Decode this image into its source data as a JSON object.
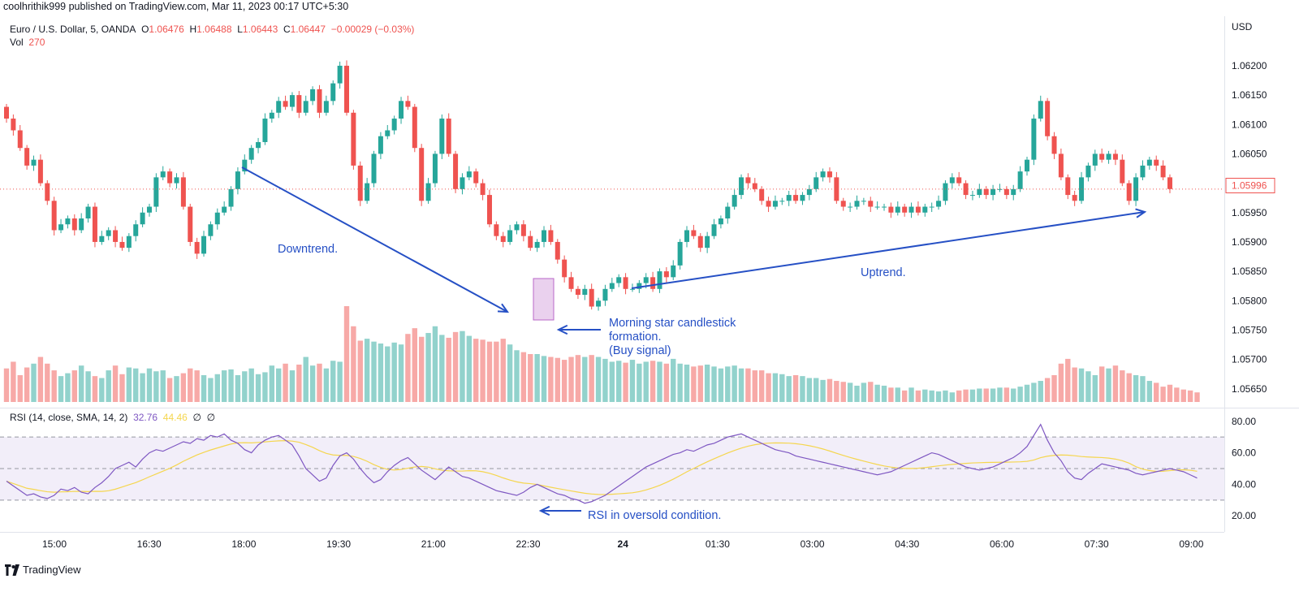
{
  "header": {
    "publisher_line": "coolhrithik999 published on TradingView.com, Mar 11, 2023 00:17 UTC+5:30"
  },
  "legend": {
    "symbol": "Euro / U.S. Dollar, 5, OANDA",
    "open_label": "O",
    "open": "1.06476",
    "high_label": "H",
    "high": "1.06488",
    "low_label": "L",
    "low": "1.06443",
    "close_label": "C",
    "close": "1.06447",
    "change": "−0.00029 (−0.03%)",
    "vol_label": "Vol",
    "vol": "270"
  },
  "price_axis": {
    "currency": "USD",
    "ticks": [
      "1.06200",
      "1.06150",
      "1.06100",
      "1.06050",
      "1.05950",
      "1.05900",
      "1.05850",
      "1.05800",
      "1.05750",
      "1.05700",
      "1.05650"
    ],
    "last_price": "1.05996"
  },
  "rsi_legend": {
    "label": "RSI (14, close, SMA, 14, 2)",
    "rsi": "32.76",
    "sma": "44.46",
    "extra1": "∅",
    "extra2": "∅"
  },
  "rsi_axis": {
    "ticks": [
      "80.00",
      "60.00",
      "40.00",
      "20.00"
    ]
  },
  "time_axis": {
    "ticks": [
      "15:00",
      "16:30",
      "18:00",
      "19:30",
      "21:00",
      "22:30",
      "24",
      "01:30",
      "03:00",
      "04:30",
      "06:00",
      "07:30",
      "09:00"
    ]
  },
  "annotations": {
    "downtrend": "Downtrend.",
    "uptrend": "Uptrend.",
    "morning_star_1": "Morning star candlestick",
    "morning_star_2": "formation.",
    "morning_star_3": "(Buy signal)",
    "rsi_oversold": "RSI in oversold condition."
  },
  "footer": {
    "brand": "TradingView"
  },
  "colors": {
    "up": "#26a69a",
    "down": "#ef5350",
    "rsi": "#7e57c2",
    "rsi_sma": "#f5d64e",
    "annotation": "#2650c5",
    "rsi_band": "#ede7f6"
  },
  "chart_data": {
    "type": "candlestick",
    "symbol": "EURUSD",
    "timeframe": "5",
    "price_ylim": [
      1.0564,
      1.0624
    ],
    "closes": [
      1.0611,
      1.0609,
      1.0606,
      1.0603,
      1.0604,
      1.06,
      1.0597,
      1.0592,
      1.0593,
      1.0594,
      1.0592,
      1.0594,
      1.0596,
      1.059,
      1.0591,
      1.0592,
      1.059,
      1.0589,
      1.0591,
      1.0593,
      1.0595,
      1.0596,
      1.0601,
      1.0602,
      1.06,
      1.0601,
      1.0596,
      1.059,
      1.0588,
      1.0591,
      1.0593,
      1.0595,
      1.0596,
      1.0599,
      1.0602,
      1.0604,
      1.0606,
      1.0607,
      1.0611,
      1.0612,
      1.0614,
      1.0613,
      1.0615,
      1.0612,
      1.0614,
      1.0616,
      1.0612,
      1.0614,
      1.0617,
      1.062,
      1.0612,
      1.0603,
      1.0597,
      1.06,
      1.0605,
      1.0608,
      1.0609,
      1.0611,
      1.0614,
      1.0613,
      1.0606,
      1.0597,
      1.06,
      1.0605,
      1.0611,
      1.0605,
      1.0599,
      1.0601,
      1.0602,
      1.06,
      1.0598,
      1.0593,
      1.0591,
      1.059,
      1.0592,
      1.0593,
      1.0591,
      1.0589,
      1.059,
      1.0592,
      1.059,
      1.0587,
      1.0584,
      1.0582,
      1.0581,
      1.0582,
      1.0579,
      1.058,
      1.0582,
      1.0583,
      1.0584,
      1.0582,
      1.0582,
      1.0583,
      1.0584,
      1.0582,
      1.0585,
      1.0584,
      1.0586,
      1.059,
      1.0592,
      1.0591,
      1.0589,
      1.0591,
      1.0593,
      1.0594,
      1.0596,
      1.0598,
      1.0601,
      1.06,
      1.0599,
      1.0597,
      1.0596,
      1.0597,
      1.0597,
      1.0598,
      1.0597,
      1.0598,
      1.0599,
      1.0601,
      1.0602,
      1.0601,
      1.0597,
      1.0596,
      1.0596,
      1.0597,
      1.0597,
      1.0596,
      1.0596,
      1.0596,
      1.0595,
      1.0596,
      1.0595,
      1.0596,
      1.0595,
      1.0596,
      1.0596,
      1.0597,
      1.06,
      1.0601,
      1.06,
      1.0598,
      1.0598,
      1.0599,
      1.0598,
      1.0599,
      1.0599,
      1.0598,
      1.0599,
      1.0602,
      1.0604,
      1.0611,
      1.0614,
      1.0608,
      1.0605,
      1.0601,
      1.0598,
      1.0597,
      1.0601,
      1.0603,
      1.0605,
      1.0604,
      1.0605,
      1.0604,
      1.06,
      1.0597,
      1.0601,
      1.0603,
      1.0604,
      1.0603,
      1.0601,
      1.0599
    ],
    "volume_relative": [
      0.35,
      0.42,
      0.28,
      0.36,
      0.4,
      0.47,
      0.4,
      0.33,
      0.27,
      0.3,
      0.33,
      0.38,
      0.32,
      0.27,
      0.25,
      0.33,
      0.38,
      0.29,
      0.36,
      0.35,
      0.3,
      0.35,
      0.32,
      0.33,
      0.25,
      0.27,
      0.3,
      0.35,
      0.33,
      0.28,
      0.25,
      0.29,
      0.33,
      0.34,
      0.28,
      0.32,
      0.35,
      0.29,
      0.31,
      0.38,
      0.35,
      0.4,
      0.33,
      0.39,
      0.47,
      0.38,
      0.4,
      0.35,
      0.43,
      0.42,
      1.0,
      0.79,
      0.64,
      0.66,
      0.63,
      0.61,
      0.58,
      0.62,
      0.6,
      0.71,
      0.77,
      0.68,
      0.72,
      0.79,
      0.7,
      0.67,
      0.73,
      0.74,
      0.69,
      0.66,
      0.65,
      0.63,
      0.63,
      0.66,
      0.6,
      0.54,
      0.52,
      0.5,
      0.5,
      0.48,
      0.47,
      0.46,
      0.44,
      0.47,
      0.49,
      0.47,
      0.49,
      0.47,
      0.45,
      0.42,
      0.43,
      0.41,
      0.44,
      0.4,
      0.42,
      0.43,
      0.42,
      0.4,
      0.45,
      0.4,
      0.39,
      0.37,
      0.38,
      0.39,
      0.37,
      0.35,
      0.37,
      0.38,
      0.35,
      0.35,
      0.33,
      0.33,
      0.3,
      0.3,
      0.29,
      0.27,
      0.28,
      0.27,
      0.25,
      0.25,
      0.23,
      0.24,
      0.22,
      0.21,
      0.2,
      0.17,
      0.2,
      0.21,
      0.18,
      0.17,
      0.15,
      0.15,
      0.12,
      0.15,
      0.12,
      0.13,
      0.12,
      0.11,
      0.12,
      0.1,
      0.12,
      0.13,
      0.13,
      0.14,
      0.14,
      0.14,
      0.15,
      0.15,
      0.14,
      0.16,
      0.18,
      0.2,
      0.22,
      0.25,
      0.28,
      0.4,
      0.45,
      0.36,
      0.35,
      0.32,
      0.28,
      0.37,
      0.35,
      0.38,
      0.33,
      0.3,
      0.28,
      0.27,
      0.22,
      0.2,
      0.16,
      0.18,
      0.15,
      0.13,
      0.12,
      0.1
    ],
    "rsi": [
      42,
      39,
      36,
      33,
      34,
      32,
      31,
      33,
      37,
      36,
      38,
      35,
      34,
      38,
      41,
      45,
      50,
      52,
      54,
      51,
      56,
      60,
      62,
      61,
      63,
      65,
      67,
      66,
      69,
      68,
      71,
      70,
      72,
      68,
      66,
      62,
      60,
      65,
      68,
      70,
      71,
      68,
      65,
      58,
      50,
      46,
      42,
      44,
      52,
      58,
      60,
      56,
      50,
      45,
      41,
      43,
      48,
      52,
      55,
      57,
      53,
      49,
      46,
      43,
      47,
      51,
      48,
      45,
      44,
      42,
      40,
      38,
      36,
      35,
      34,
      33,
      35,
      38,
      40,
      38,
      36,
      34,
      33,
      31,
      30,
      28,
      29,
      31,
      33,
      36,
      39,
      42,
      45,
      48,
      51,
      53,
      55,
      57,
      59,
      60,
      62,
      61,
      63,
      65,
      66,
      68,
      70,
      71,
      72,
      70,
      68,
      66,
      64,
      62,
      61,
      60,
      58,
      57,
      56,
      55,
      54,
      53,
      52,
      51,
      50,
      49,
      48,
      47,
      46,
      47,
      48,
      50,
      52,
      54,
      56,
      58,
      60,
      59,
      57,
      55,
      53,
      51,
      50,
      49,
      50,
      51,
      53,
      55,
      57,
      60,
      64,
      71,
      78,
      68,
      60,
      55,
      48,
      44,
      43,
      47,
      50,
      53,
      52,
      51,
      50,
      49,
      47,
      46,
      47,
      48,
      49,
      50,
      49,
      48,
      46,
      44
    ],
    "rsi_ylim": [
      16,
      84
    ],
    "rsi_upper_band": 70,
    "rsi_lower_band": 30,
    "rsi_mid": 50,
    "grid": false,
    "legend_position": "top-left"
  }
}
